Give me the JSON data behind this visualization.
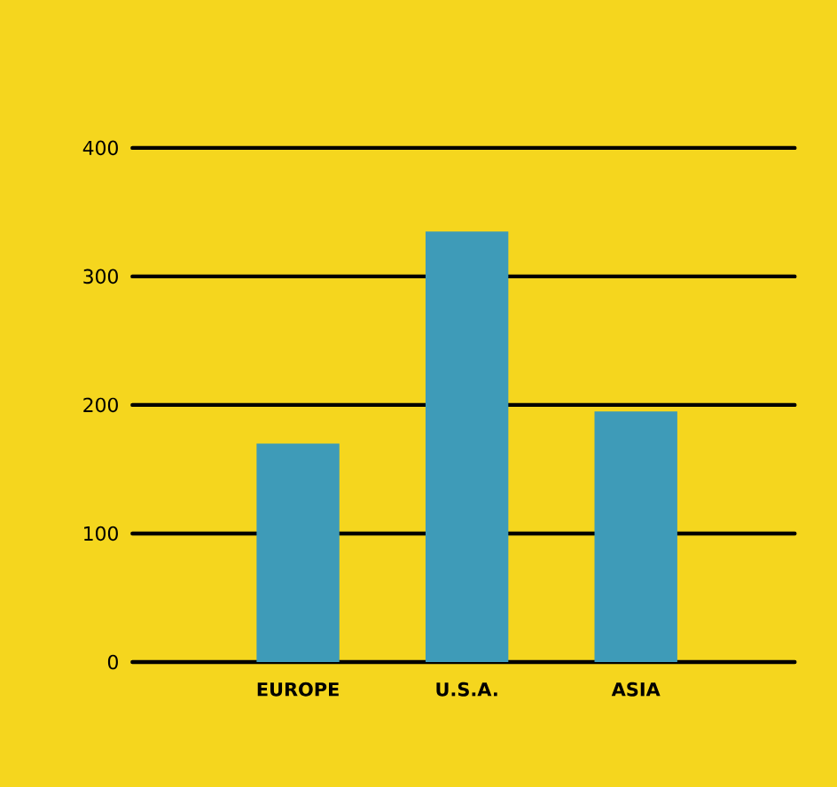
{
  "chart_data": {
    "type": "bar",
    "categories": [
      "EUROPE",
      "U.S.A.",
      "ASIA"
    ],
    "values": [
      170,
      335,
      195
    ],
    "color": "#3e9bb8",
    "ylim": [
      0,
      400
    ],
    "yticks": [
      0,
      100,
      200,
      300,
      400
    ],
    "grid": "y"
  }
}
